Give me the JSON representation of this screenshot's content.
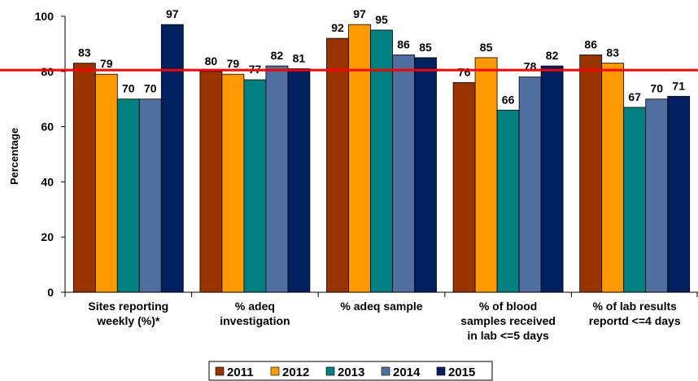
{
  "chart_data": {
    "type": "bar",
    "title": "",
    "xlabel": "",
    "ylabel": "Percentage",
    "ylim": [
      0,
      100
    ],
    "yticks": [
      0,
      20,
      40,
      60,
      80,
      100
    ],
    "grid": false,
    "legend_position": "bottom",
    "categories": [
      [
        "Sites reporting",
        "weekly (%)*"
      ],
      [
        "% adeq",
        "investigation"
      ],
      [
        "% adeq sample"
      ],
      [
        "% of blood",
        "samples received",
        "in lab <=5 days"
      ],
      [
        "% of lab results",
        "reportd <=4 days"
      ]
    ],
    "series": [
      {
        "name": "2011",
        "color": "#993300",
        "values": [
          83,
          80,
          92,
          76,
          86
        ]
      },
      {
        "name": "2012",
        "color": "#ff9900",
        "values": [
          79,
          79,
          97,
          85,
          83
        ]
      },
      {
        "name": "2013",
        "color": "#008080",
        "values": [
          70,
          77,
          95,
          66,
          67
        ]
      },
      {
        "name": "2014",
        "color": "#4f6fa0",
        "values": [
          70,
          82,
          86,
          78,
          70
        ]
      },
      {
        "name": "2015",
        "color": "#002060",
        "values": [
          97,
          81,
          85,
          82,
          71
        ]
      }
    ],
    "data_labels": [
      [
        "83",
        "80",
        "92",
        "76",
        "86"
      ],
      [
        "79",
        "79",
        "97",
        "85",
        "83"
      ],
      [
        "70",
        "77",
        "95",
        "66",
        "67"
      ],
      [
        "70",
        "82",
        "86",
        "78",
        "70"
      ],
      [
        "97",
        "81",
        "85",
        "82",
        "71"
      ]
    ],
    "reference_line": {
      "value": 80.5,
      "color": "#ff0000"
    }
  }
}
